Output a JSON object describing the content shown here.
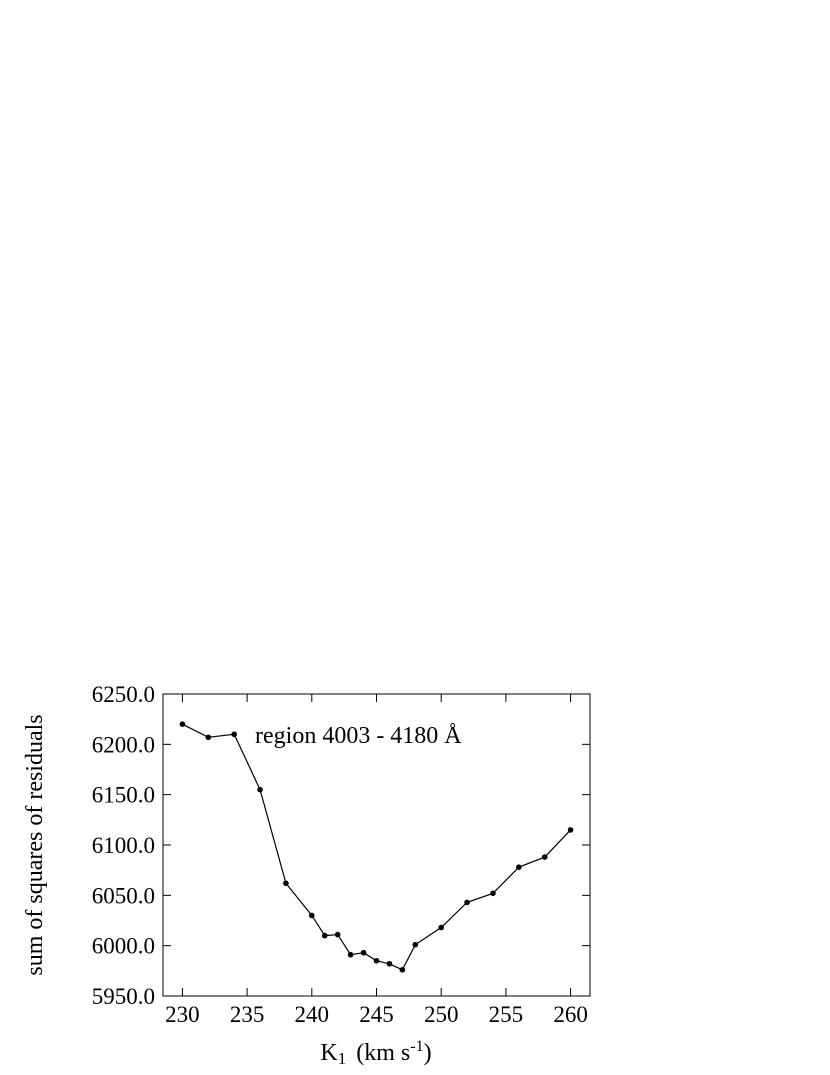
{
  "chart_data": {
    "type": "line",
    "annotation": "region 4003 - 4180 Å",
    "ylabel": "sum of squares of residuals",
    "xlabel": {
      "base": "K",
      "sub": "1",
      "unit": "(km s",
      "sup": "-1",
      "close": ")"
    },
    "x": [
      230,
      232,
      234,
      236,
      238,
      240,
      241,
      242,
      243,
      244,
      245,
      246,
      247,
      248,
      250,
      252,
      254,
      256,
      258,
      260
    ],
    "series": [
      {
        "color": "#000000",
        "values": [
          6220,
          6207,
          6210,
          6155,
          6062,
          6030,
          6010,
          6011,
          5991,
          5993,
          5985,
          5982,
          5976,
          6001,
          6018,
          6043,
          6052,
          6078,
          6088,
          6115
        ]
      }
    ],
    "xlim": [
      228.5,
      261.5
    ],
    "ylim": [
      5950,
      6250
    ],
    "xticks": [
      230,
      235,
      240,
      245,
      250,
      255,
      260
    ],
    "yticks": [
      {
        "value": 5950,
        "label": "5950.0"
      },
      {
        "value": 6000,
        "label": "6000.0"
      },
      {
        "value": 6050,
        "label": "6050.0"
      },
      {
        "value": 6100,
        "label": "6100.0"
      },
      {
        "value": 6150,
        "label": "6150.0"
      },
      {
        "value": 6200,
        "label": "6200.0"
      },
      {
        "value": 6250,
        "label": "6250.0"
      }
    ]
  }
}
